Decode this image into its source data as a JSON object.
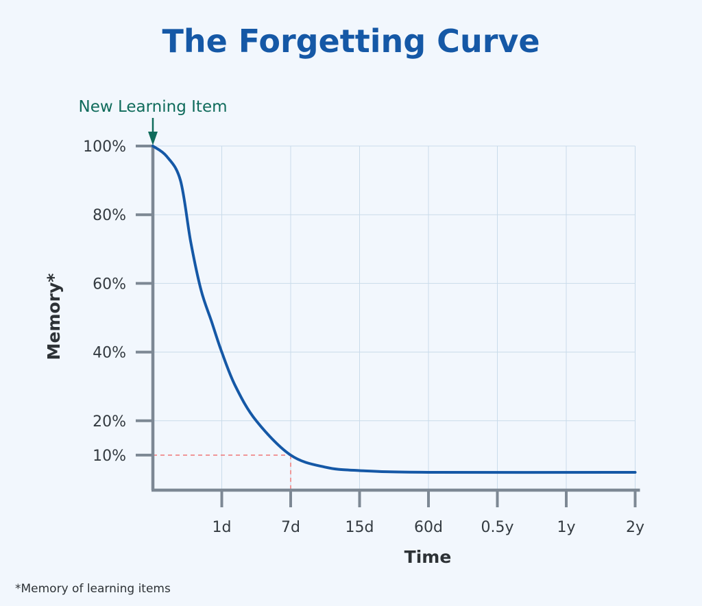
{
  "chart_data": {
    "type": "line",
    "title": "The Forgetting Curve",
    "xlabel": "Time",
    "ylabel": "Memory*",
    "x_categories": [
      "1d",
      "7d",
      "15d",
      "60d",
      "0.5y",
      "1y",
      "2y"
    ],
    "y_ticks": [
      100,
      80,
      60,
      40,
      20,
      10
    ],
    "y_tick_labels": [
      "100%",
      "80%",
      "60%",
      "40%",
      "20%",
      "10%"
    ],
    "ylim": [
      0,
      100
    ],
    "grid": true,
    "series": [
      {
        "color": "#1558a6",
        "points": [
          {
            "x": 0,
            "y": 100
          },
          {
            "x": 0.2,
            "y": 97
          },
          {
            "x": 0.4,
            "y": 90
          },
          {
            "x": 0.55,
            "y": 72
          },
          {
            "x": 0.7,
            "y": 58
          },
          {
            "x": 0.85,
            "y": 49
          },
          {
            "x": 1,
            "y": 40
          },
          {
            "x": 1.2,
            "y": 30
          },
          {
            "x": 1.5,
            "y": 20
          },
          {
            "x": 2,
            "y": 10
          },
          {
            "x": 2.5,
            "y": 6.5
          },
          {
            "x": 3,
            "y": 5.5
          },
          {
            "x": 4,
            "y": 5
          },
          {
            "x": 7,
            "y": 5
          }
        ]
      }
    ],
    "highlight": {
      "x_label": "7d",
      "y_label": "10%",
      "color": "#f08080"
    },
    "annotation": {
      "label": "New Learning Item",
      "color": "#0f6b5b"
    },
    "footnote": "*Memory of learning items"
  }
}
